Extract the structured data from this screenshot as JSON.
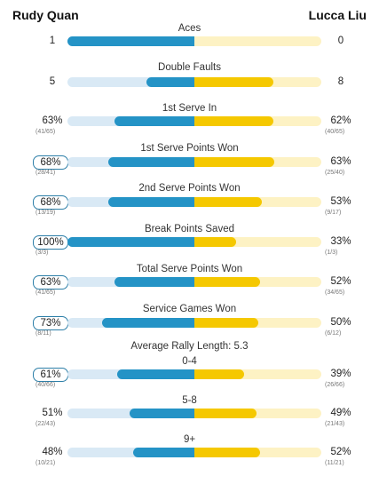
{
  "header": {
    "player1": "Rudy Quan",
    "player2": "Lucca Liu"
  },
  "colors": {
    "player1": "#2493c6",
    "player2": "#f5c800",
    "player1_track": "#d9e9f5",
    "player2_track": "#fdf2c4"
  },
  "stats": [
    {
      "label": "Aces",
      "left": "1",
      "right": "0",
      "left_frac": "",
      "right_frac": "",
      "left_share": 1.0,
      "right_share": 0.0,
      "left_boxed": false
    },
    {
      "label": "Double Faults",
      "left": "5",
      "right": "8",
      "left_frac": "",
      "right_frac": "",
      "left_share": 0.38,
      "right_share": 0.62,
      "left_boxed": false
    },
    {
      "label": "1st Serve In",
      "left": "63%",
      "right": "62%",
      "left_frac": "(41/65)",
      "right_frac": "(40/65)",
      "left_share": 0.63,
      "right_share": 0.62,
      "left_boxed": false
    },
    {
      "label": "1st Serve Points Won",
      "left": "68%",
      "right": "63%",
      "left_frac": "(28/41)",
      "right_frac": "(25/40)",
      "left_share": 0.68,
      "right_share": 0.63,
      "left_boxed": true
    },
    {
      "label": "2nd Serve Points Won",
      "left": "68%",
      "right": "53%",
      "left_frac": "(13/19)",
      "right_frac": "(9/17)",
      "left_share": 0.68,
      "right_share": 0.53,
      "left_boxed": true
    },
    {
      "label": "Break Points Saved",
      "left": "100%",
      "right": "33%",
      "left_frac": "(3/3)",
      "right_frac": "(1/3)",
      "left_share": 1.0,
      "right_share": 0.33,
      "left_boxed": true
    },
    {
      "label": "Total Serve Points Won",
      "left": "63%",
      "right": "52%",
      "left_frac": "(41/65)",
      "right_frac": "(34/65)",
      "left_share": 0.63,
      "right_share": 0.52,
      "left_boxed": true
    },
    {
      "label": "Service Games Won",
      "left": "73%",
      "right": "50%",
      "left_frac": "(8/11)",
      "right_frac": "(6/12)",
      "left_share": 0.73,
      "right_share": 0.5,
      "left_boxed": true
    }
  ],
  "rally": {
    "title": "Average Rally Length: 5.3",
    "buckets": [
      {
        "label": "0-4",
        "left": "61%",
        "right": "39%",
        "left_frac": "(40/66)",
        "right_frac": "(26/66)",
        "left_share": 0.61,
        "right_share": 0.39,
        "left_boxed": true
      },
      {
        "label": "5-8",
        "left": "51%",
        "right": "49%",
        "left_frac": "(22/43)",
        "right_frac": "(21/43)",
        "left_share": 0.51,
        "right_share": 0.49,
        "left_boxed": false
      },
      {
        "label": "9+",
        "left": "48%",
        "right": "52%",
        "left_frac": "(10/21)",
        "right_frac": "(11/21)",
        "left_share": 0.48,
        "right_share": 0.52,
        "left_boxed": false
      }
    ]
  }
}
